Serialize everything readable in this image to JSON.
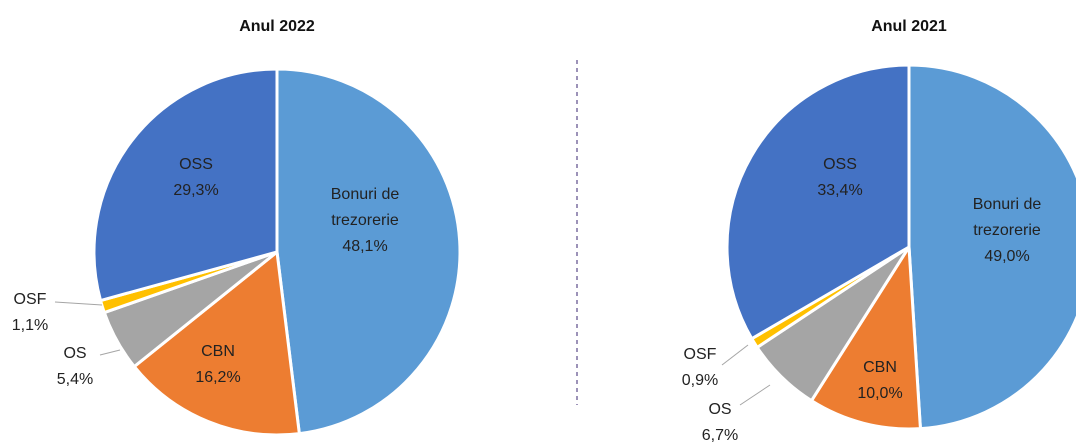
{
  "chart_data": [
    {
      "type": "pie",
      "title": "Anul 2022",
      "categories": [
        "Bonuri de trezorerie",
        "CBN",
        "OS",
        "OSF",
        "OSS"
      ],
      "values": [
        48.1,
        16.2,
        5.4,
        1.1,
        29.3
      ],
      "value_labels": [
        "48,1%",
        "16,2%",
        "5,4%",
        "1,1%",
        "29,3%"
      ],
      "colors": [
        "#5b9bd5",
        "#ed7d31",
        "#a5a5a5",
        "#ffc000",
        "#4472c4"
      ]
    },
    {
      "type": "pie",
      "title": "Anul 2021",
      "categories": [
        "Bonuri de trezorerie",
        "CBN",
        "OS",
        "OSF",
        "OSS"
      ],
      "values": [
        49.0,
        10.0,
        6.7,
        0.9,
        33.4
      ],
      "value_labels": [
        "49,0%",
        "10,0%",
        "6,7%",
        "0,9%",
        "33,4%"
      ],
      "colors": [
        "#5b9bd5",
        "#ed7d31",
        "#a5a5a5",
        "#ffc000",
        "#4472c4"
      ]
    }
  ]
}
